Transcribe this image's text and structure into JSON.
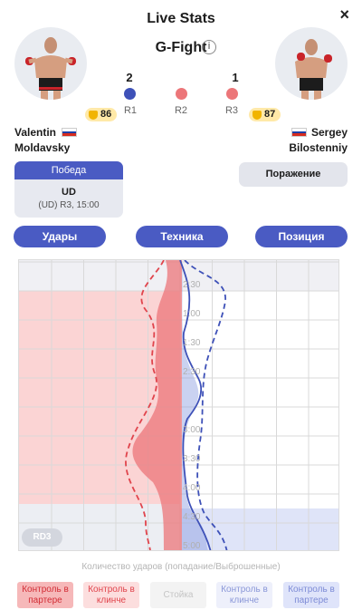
{
  "header": {
    "title": "Live Stats",
    "close_label": "×",
    "event": "G-Fight",
    "info_icon": "info-icon"
  },
  "fighters": {
    "left": {
      "first_name": "Valentin",
      "last_name": "Moldavsky",
      "rating": "86",
      "flag": [
        "#ffffff",
        "#1c3fa8",
        "#d52b1e"
      ],
      "result": {
        "label": "Победа",
        "method": "UD",
        "detail": "(UD) R3, 15:00"
      }
    },
    "right": {
      "first_name": "Sergey",
      "last_name": "Bilostenniy",
      "rating": "87",
      "flag": [
        "#ffffff",
        "#1c3fa8",
        "#d52b1e"
      ],
      "result": {
        "label": "Поражение"
      }
    }
  },
  "score": {
    "left": "2",
    "right": "1"
  },
  "rounds": [
    {
      "label": "R1",
      "winner": "blue",
      "color": "#3e51b8"
    },
    {
      "label": "R2",
      "winner": "red",
      "color": "#ec7679"
    },
    {
      "label": "R3",
      "winner": "red",
      "color": "#ec7679"
    }
  ],
  "tabs": [
    {
      "label": "Удары"
    },
    {
      "label": "Техника"
    },
    {
      "label": "Позиция"
    }
  ],
  "chart": {
    "round_badge": "RD3",
    "time_labels": [
      "2:30",
      "1:00",
      "1:30",
      "2:30",
      "3:00",
      "3:30",
      "4:00",
      "4:30",
      "5:00"
    ],
    "caption": "Количество ударов (попадание/Выброшенные)",
    "colors": {
      "red": "#ec7679",
      "blue": "#3e51b8",
      "red_zone": "#fbd4d4",
      "blue_zone": "#dfe4f8"
    }
  },
  "legend": [
    {
      "label": "Контроль в партере",
      "bg": "#f6b8b9",
      "color": "#d22d35"
    },
    {
      "label": "Контроль в клинче",
      "bg": "#fcdede",
      "color": "#e0444c"
    },
    {
      "label": "Стойка",
      "bg": "#f3f3f3",
      "color": "#c5c5c5"
    },
    {
      "label": "Контроль в клинче",
      "bg": "#eef0fb",
      "color": "#8a97d8"
    },
    {
      "label": "Контроль в партере",
      "bg": "#dfe4fa",
      "color": "#7d8bd6"
    }
  ]
}
